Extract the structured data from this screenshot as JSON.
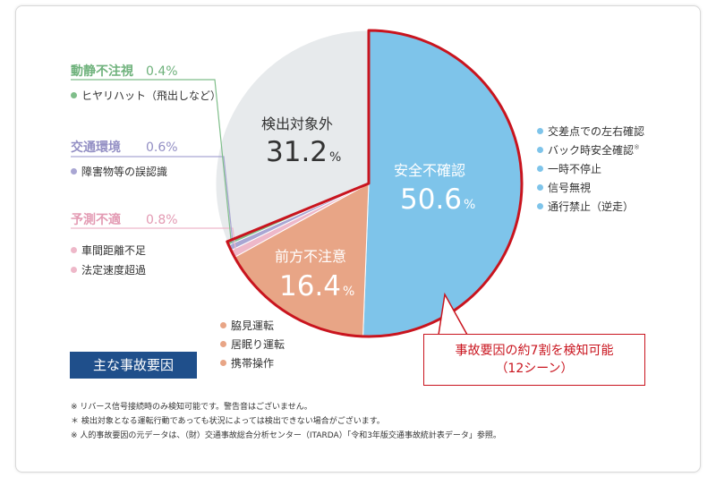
{
  "chart_data": {
    "type": "pie",
    "slices": [
      {
        "name": "安全不確認",
        "value": 50.6,
        "unit": "%",
        "color": "#7ec4ea"
      },
      {
        "name": "前方不注意",
        "value": 16.4,
        "unit": "%",
        "color": "#e8a586"
      },
      {
        "name": "予測不適",
        "value": 0.8,
        "unit": "%",
        "color": "#eeb8c9"
      },
      {
        "name": "交通環境",
        "value": 0.6,
        "unit": "%",
        "color": "#a9a6d3"
      },
      {
        "name": "動静不注視",
        "value": 0.4,
        "unit": "%",
        "color": "#7fbe8a"
      },
      {
        "name": "検出対象外",
        "value": 31.2,
        "unit": "%",
        "color": "#e7eaec"
      }
    ],
    "highlight_color": "#c9141e",
    "text_color_dark": "#333333"
  },
  "labels": {
    "anzen": {
      "name": "安全不確認",
      "num": "50.6",
      "unit": "%"
    },
    "zenpo": {
      "name": "前方不注意",
      "num": "16.4",
      "unit": "%"
    },
    "kenshutsu": {
      "name": "検出対象外",
      "num": "31.2",
      "unit": "%"
    }
  },
  "anzen_items": [
    "交差点での左右確認",
    "バック時安全確認",
    "一時不停止",
    "信号無視",
    "通行禁止（逆走）"
  ],
  "anzen_items_mark": "※",
  "zenpo_items": [
    "脇見運転",
    "居眠り運転",
    "携帯操作"
  ],
  "left_groups": {
    "dousei": {
      "name": "動静不注視",
      "num": "0.4",
      "unit": "%",
      "items": [
        "ヒヤリハット（飛出しなど）"
      ]
    },
    "koutsu": {
      "name": "交通環境",
      "num": "0.6",
      "unit": "%",
      "items": [
        "障害物等の誤認識"
      ]
    },
    "yosoku": {
      "name": "予測不適",
      "num": "0.8",
      "unit": "%",
      "items": [
        "車間距離不足",
        "法定速度超過"
      ]
    }
  },
  "callout": {
    "line1": "事故要因の約7割を検知可能",
    "line2": "（12シーン）"
  },
  "badge": "主な事故要因",
  "notes": [
    "※ リバース信号接続時のみ検知可能です。警告音はございません。",
    "＊ 検出対象となる運転行動であっても状況によっては検出できない場合がございます。",
    "※ 人的事故要因の元データは、（財）交通事故総合分析センター（ITARDA）「令和3年版交通事故統計表データ」参照。"
  ]
}
